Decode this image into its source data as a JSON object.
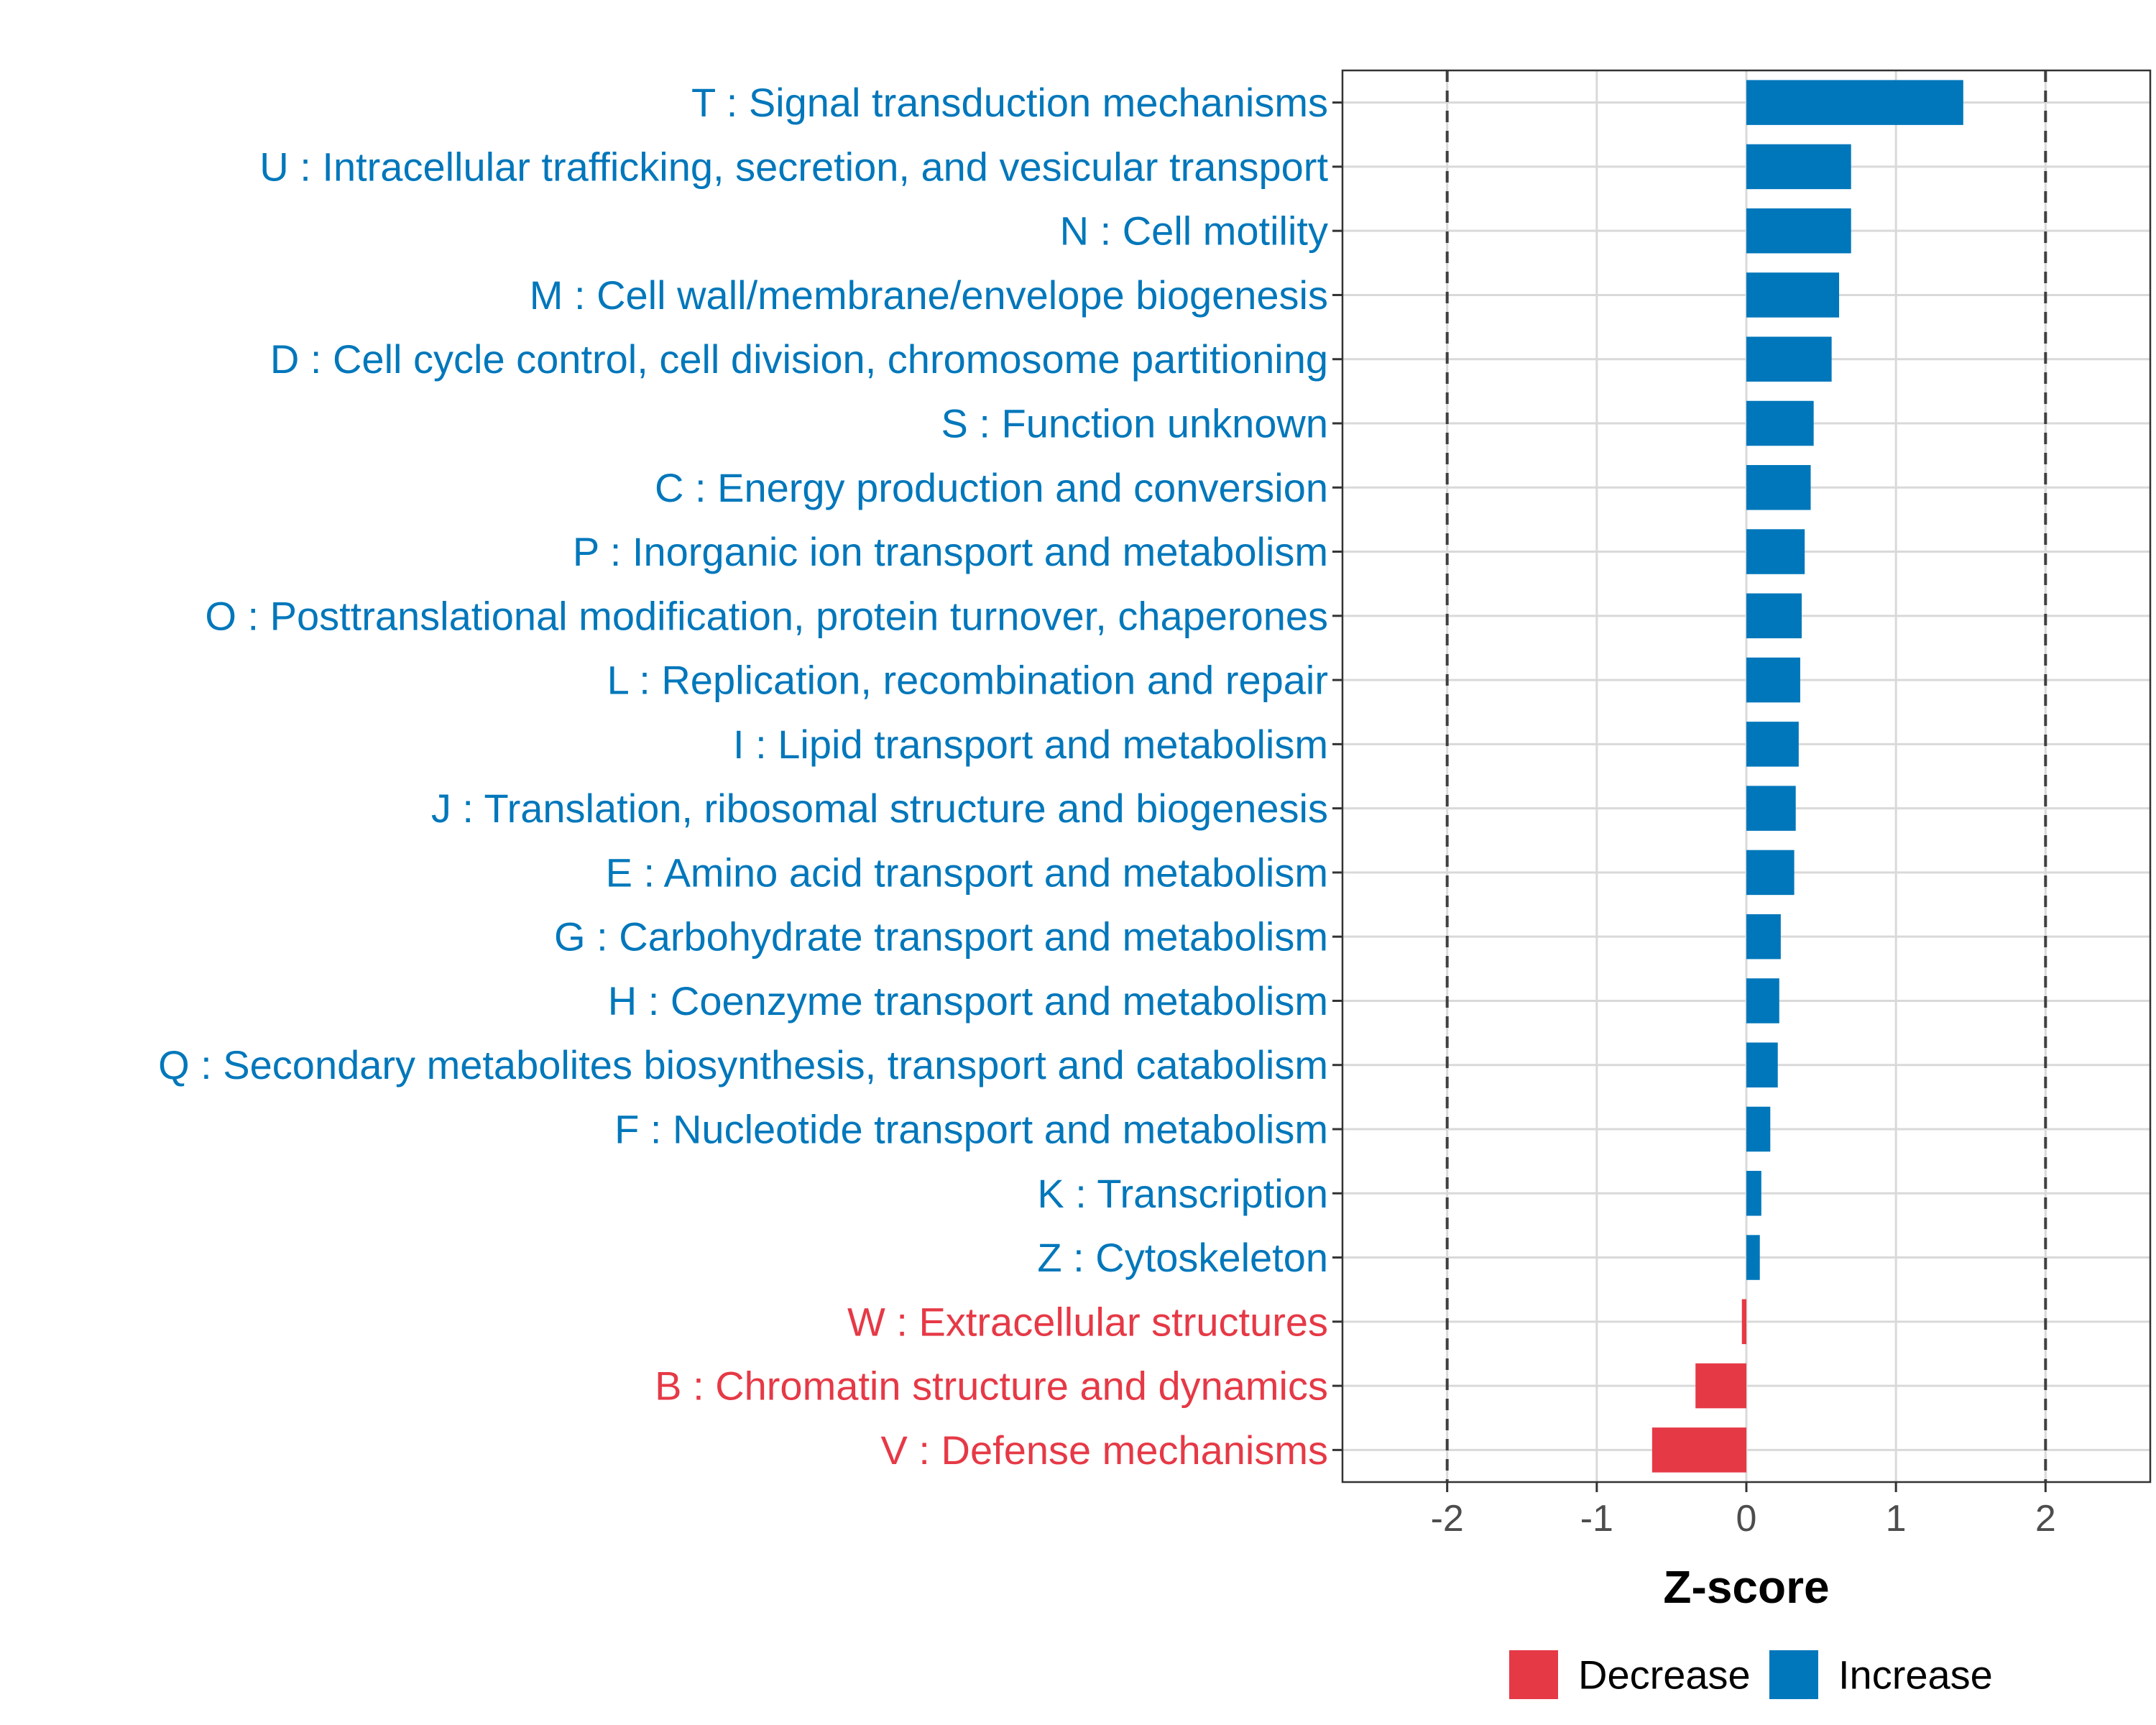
{
  "chart_data": {
    "type": "bar",
    "orientation": "horizontal",
    "xlabel": "Z-score",
    "ylabel": "",
    "xlim": [
      -2.7,
      2.7
    ],
    "xticks": [
      -2,
      -1,
      0,
      1,
      2
    ],
    "xtick_labels": [
      "-2",
      "-1",
      "0",
      "1",
      "2"
    ],
    "reference_lines": [
      -2,
      2
    ],
    "grid": true,
    "colors": {
      "Increase": "#0077bb",
      "Decrease": "#e63946"
    },
    "categories": [
      "T : Signal transduction mechanisms",
      "U : Intracellular trafficking, secretion, and vesicular transport",
      "N : Cell motility",
      "M : Cell wall/membrane/envelope biogenesis",
      "D : Cell cycle control, cell division, chromosome partitioning",
      "S : Function unknown",
      "C : Energy production and conversion",
      "P : Inorganic ion transport and metabolism",
      "O : Posttranslational modification, protein turnover, chaperones",
      "L : Replication, recombination and repair",
      "I : Lipid transport and metabolism",
      "J : Translation, ribosomal structure and biogenesis",
      "E : Amino acid transport and metabolism",
      "G : Carbohydrate transport and metabolism",
      "H : Coenzyme transport and metabolism",
      "Q : Secondary metabolites biosynthesis, transport and catabolism",
      "F : Nucleotide transport and metabolism",
      "K : Transcription",
      "Z : Cytoskeleton",
      "W : Extracellular structures",
      "B : Chromatin structure and dynamics",
      "V : Defense mechanisms"
    ],
    "values": [
      1.45,
      0.7,
      0.7,
      0.62,
      0.57,
      0.45,
      0.43,
      0.39,
      0.37,
      0.36,
      0.35,
      0.33,
      0.32,
      0.23,
      0.22,
      0.21,
      0.16,
      0.1,
      0.09,
      -0.03,
      -0.34,
      -0.63
    ],
    "direction": [
      "Increase",
      "Increase",
      "Increase",
      "Increase",
      "Increase",
      "Increase",
      "Increase",
      "Increase",
      "Increase",
      "Increase",
      "Increase",
      "Increase",
      "Increase",
      "Increase",
      "Increase",
      "Increase",
      "Increase",
      "Increase",
      "Increase",
      "Decrease",
      "Decrease",
      "Decrease"
    ],
    "legend": {
      "position": "bottom",
      "entries": [
        {
          "label": "Decrease",
          "color": "#e63946"
        },
        {
          "label": "Increase",
          "color": "#0077bb"
        }
      ]
    }
  }
}
